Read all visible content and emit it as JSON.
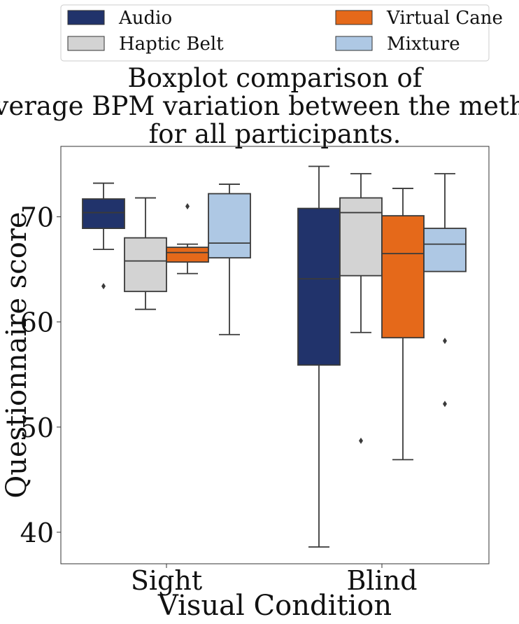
{
  "chart_data": {
    "type": "boxplot",
    "title_lines": [
      "Boxplot comparison of",
      "average BPM variation between the methods",
      "for all participants."
    ],
    "xlabel": "Visual Condition",
    "ylabel": "Questionnaire score",
    "categories": [
      "Sight",
      "Blind"
    ],
    "ylim": [
      37,
      76.7
    ],
    "yticks": [
      40,
      50,
      60,
      70
    ],
    "grid": false,
    "legend_position": "top, above title, two columns",
    "series": [
      {
        "name": "Audio",
        "color": "#21336b",
        "boxes": [
          {
            "whislo": 66.9,
            "q1": 68.9,
            "med": 70.4,
            "q3": 71.7,
            "whishi": 73.2,
            "fliers": [
              63.4
            ]
          },
          {
            "whislo": 38.6,
            "q1": 55.9,
            "med": 64.1,
            "q3": 70.8,
            "whishi": 74.8,
            "fliers": []
          }
        ]
      },
      {
        "name": "Haptic Belt",
        "color": "#d3d3d3",
        "boxes": [
          {
            "whislo": 61.2,
            "q1": 62.9,
            "med": 65.8,
            "q3": 68.0,
            "whishi": 71.8,
            "fliers": []
          },
          {
            "whislo": 59.0,
            "q1": 64.4,
            "med": 70.4,
            "q3": 71.8,
            "whishi": 74.1,
            "fliers": [
              48.7
            ]
          }
        ]
      },
      {
        "name": "Virtual Cane",
        "color": "#e5691a",
        "boxes": [
          {
            "whislo": 64.6,
            "q1": 65.7,
            "med": 66.6,
            "q3": 67.1,
            "whishi": 67.4,
            "fliers": [
              71.0
            ]
          },
          {
            "whislo": 46.9,
            "q1": 58.5,
            "med": 66.5,
            "q3": 70.1,
            "whishi": 72.7,
            "fliers": []
          }
        ]
      },
      {
        "name": "Mixture",
        "color": "#aec8e4",
        "boxes": [
          {
            "whislo": 58.8,
            "q1": 66.1,
            "med": 67.5,
            "q3": 72.2,
            "whishi": 73.1,
            "fliers": []
          },
          {
            "whislo": 64.8,
            "q1": 64.8,
            "med": 67.4,
            "q3": 68.9,
            "whishi": 74.1,
            "fliers": [
              58.2,
              52.2
            ]
          }
        ]
      }
    ]
  }
}
